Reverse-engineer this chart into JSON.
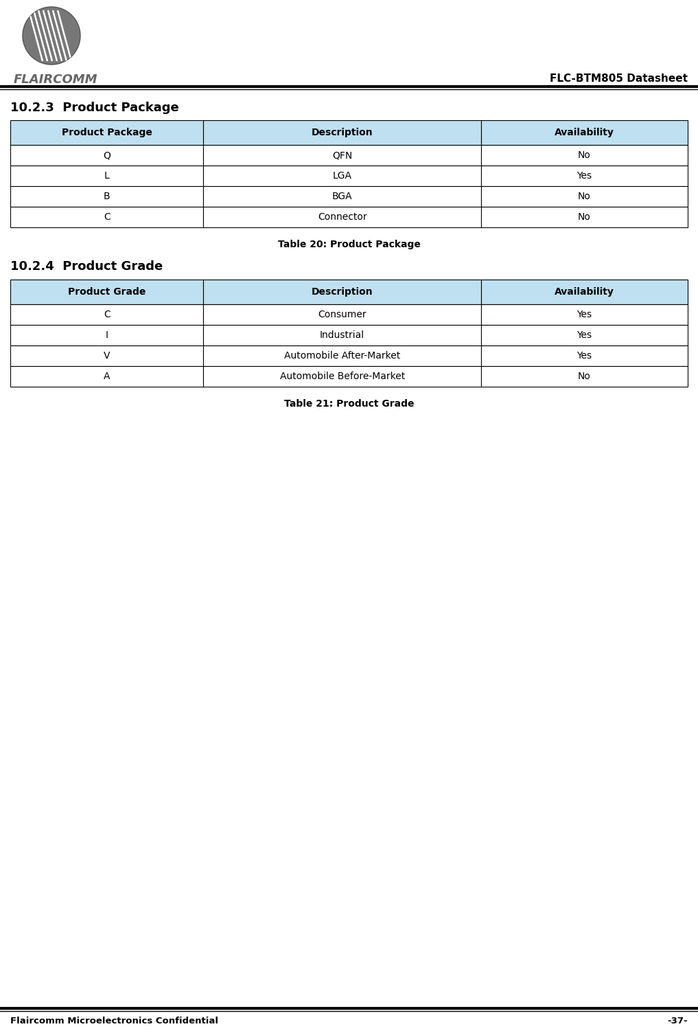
{
  "page_title": "FLC-BTM805 Datasheet",
  "logo_text": "FLAIRCOMM",
  "footer_left": "Flaircomm Microelectronics Confidential",
  "footer_right": "-37-",
  "section1_title": "10.2.3  Product Package",
  "table1_caption": "Table 20: Product Package",
  "table1_headers": [
    "Product Package",
    "Description",
    "Availability"
  ],
  "table1_rows": [
    [
      "Q",
      "QFN",
      "No"
    ],
    [
      "L",
      "LGA",
      "Yes"
    ],
    [
      "B",
      "BGA",
      "No"
    ],
    [
      "C",
      "Connector",
      "No"
    ]
  ],
  "section2_title": "10.2.4  Product Grade",
  "table2_caption": "Table 21: Product Grade",
  "table2_headers": [
    "Product Grade",
    "Description",
    "Availability"
  ],
  "table2_rows": [
    [
      "C",
      "Consumer",
      "Yes"
    ],
    [
      "I",
      "Industrial",
      "Yes"
    ],
    [
      "V",
      "Automobile After-Market",
      "Yes"
    ],
    [
      "A",
      "Automobile Before-Market",
      "No"
    ]
  ],
  "header_bg_color": "#bfe0f0",
  "row_bg_color": "#ffffff",
  "table_border_color": "#000000",
  "text_color": "#000000",
  "background_color": "#ffffff",
  "logo_circle_color": "#777777",
  "logo_text_color": "#666666"
}
